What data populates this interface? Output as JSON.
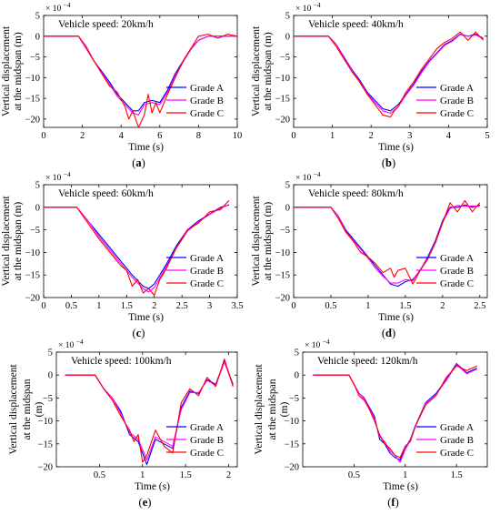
{
  "figure": {
    "legend_labels": [
      "Grade A",
      "Grade B",
      "Grade C"
    ],
    "exponent_label": "× 10",
    "exponent_power": "−4",
    "ylabel_line1": "Vertical displacement",
    "ylabel_line2_panels_a_to_d": "at the midspan  (m)",
    "ylabel_line2_panels_e_f_part1": "at the midspan",
    "ylabel_line2_panels_e_f_part2": "(m)",
    "xlabel": "Time  (s)",
    "series_colors": {
      "Grade A": "#0000ff",
      "Grade B": "#ff00ff",
      "Grade C": "#ff0000"
    }
  },
  "chart_data": [
    {
      "type": "line",
      "panel_label": "(a)",
      "annotation": "Vehicle speed: 20km/h",
      "xlim": [
        0,
        10
      ],
      "ylim": [
        -22,
        5
      ],
      "xticks": [
        0,
        2,
        4,
        6,
        8,
        10
      ],
      "yticks": [
        5,
        0,
        -5,
        -10,
        -15,
        -20
      ],
      "legend": "bottom-right",
      "series": [
        {
          "name": "Grade A",
          "x": [
            0,
            1.8,
            2.2,
            2.6,
            3.0,
            3.4,
            3.8,
            4.2,
            4.6,
            4.9,
            5.2,
            5.6,
            6.0,
            6.4,
            6.8,
            7.2,
            7.6,
            8.0,
            8.5,
            9.0,
            9.5,
            10
          ],
          "y": [
            0,
            0,
            -3,
            -6,
            -8.5,
            -11,
            -14,
            -16,
            -18,
            -18,
            -16,
            -15.5,
            -16,
            -13,
            -9,
            -6,
            -3,
            -1,
            0,
            0,
            0,
            0
          ]
        },
        {
          "name": "Grade B",
          "x": [
            0,
            1.8,
            2.2,
            2.6,
            3.0,
            3.4,
            3.8,
            4.2,
            4.6,
            4.9,
            5.2,
            5.6,
            6.0,
            6.4,
            6.8,
            7.2,
            7.6,
            8.0,
            8.5,
            9.0,
            9.5,
            10
          ],
          "y": [
            0,
            0,
            -3,
            -6,
            -8.8,
            -11.5,
            -14.5,
            -16.5,
            -18.5,
            -19,
            -16.5,
            -16,
            -16.5,
            -13.5,
            -9.5,
            -6.2,
            -3.2,
            -1,
            0,
            0,
            0,
            0
          ]
        },
        {
          "name": "Grade C",
          "x": [
            0,
            1.8,
            2.2,
            2.6,
            3.0,
            3.4,
            3.8,
            4.2,
            4.4,
            4.6,
            4.9,
            5.2,
            5.4,
            5.6,
            5.8,
            6.0,
            6.4,
            6.8,
            7.2,
            7.6,
            8.0,
            8.5,
            9.0,
            9.5,
            10
          ],
          "y": [
            0,
            0,
            -2.5,
            -6,
            -9,
            -12,
            -13.5,
            -17,
            -20,
            -18,
            -22,
            -19,
            -14,
            -18.5,
            -16,
            -18.5,
            -14,
            -10,
            -6,
            -3,
            0,
            0.5,
            -0.5,
            0.5,
            0
          ]
        }
      ]
    },
    {
      "type": "line",
      "panel_label": "(b)",
      "annotation": "Vehicle speed: 40km/h",
      "xlim": [
        0,
        5
      ],
      "ylim": [
        -22,
        5
      ],
      "xticks": [
        0,
        1,
        2,
        3,
        4,
        5
      ],
      "yticks": [
        5,
        0,
        -5,
        -10,
        -15,
        -20
      ],
      "legend": "bottom-right",
      "series": [
        {
          "name": "Grade A",
          "x": [
            0,
            0.9,
            1.1,
            1.3,
            1.5,
            1.7,
            1.9,
            2.1,
            2.3,
            2.5,
            2.7,
            2.9,
            3.1,
            3.3,
            3.5,
            3.7,
            3.9,
            4.1,
            4.3,
            4.5,
            4.7,
            4.9
          ],
          "y": [
            0,
            0,
            -2,
            -5,
            -8,
            -10.5,
            -13.5,
            -15.5,
            -17.5,
            -18,
            -16.5,
            -14,
            -11.5,
            -8.5,
            -6,
            -4,
            -2,
            -1,
            0.5,
            0,
            0.5,
            -0.5
          ]
        },
        {
          "name": "Grade B",
          "x": [
            0,
            0.9,
            1.1,
            1.3,
            1.5,
            1.7,
            1.9,
            2.1,
            2.3,
            2.5,
            2.7,
            2.9,
            3.1,
            3.3,
            3.5,
            3.7,
            3.9,
            4.1,
            4.3,
            4.5,
            4.7,
            4.9
          ],
          "y": [
            0,
            0,
            -2,
            -5.2,
            -8.2,
            -10.8,
            -13.8,
            -16,
            -18,
            -18.6,
            -17,
            -14.2,
            -11.8,
            -8.8,
            -6.2,
            -4.2,
            -2.2,
            -1.2,
            0.4,
            0,
            0.3,
            -0.6
          ]
        },
        {
          "name": "Grade C",
          "x": [
            0,
            0.9,
            1.1,
            1.3,
            1.5,
            1.7,
            1.9,
            2.1,
            2.3,
            2.5,
            2.6,
            2.7,
            2.9,
            3.1,
            3.3,
            3.5,
            3.7,
            3.9,
            4.1,
            4.3,
            4.5,
            4.7,
            4.9
          ],
          "y": [
            0,
            0,
            -2.5,
            -5.5,
            -8.5,
            -11,
            -14,
            -16.5,
            -19,
            -19.5,
            -18,
            -17,
            -13.5,
            -11,
            -8,
            -5.5,
            -3,
            -1.5,
            -0.5,
            1,
            -1,
            1,
            -1
          ]
        }
      ]
    },
    {
      "type": "line",
      "panel_label": "(c)",
      "annotation": "Vehicle speed: 60km/h",
      "xlim": [
        0,
        3.5
      ],
      "ylim": [
        -20,
        5
      ],
      "xticks": [
        0,
        0.5,
        1,
        1.5,
        2,
        2.5,
        3,
        3.5
      ],
      "yticks": [
        5,
        0,
        -5,
        -10,
        -15,
        -20
      ],
      "legend": "bottom-right",
      "series": [
        {
          "name": "Grade A",
          "x": [
            0,
            0.6,
            0.8,
            1.0,
            1.2,
            1.4,
            1.6,
            1.8,
            1.9,
            2.0,
            2.2,
            2.4,
            2.6,
            2.8,
            3.0,
            3.2,
            3.35
          ],
          "y": [
            0,
            0,
            -3,
            -6,
            -9,
            -12,
            -15,
            -17.5,
            -18,
            -17,
            -13,
            -8.5,
            -5,
            -3,
            -1.5,
            0,
            0.5
          ]
        },
        {
          "name": "Grade B",
          "x": [
            0,
            0.6,
            0.8,
            1.0,
            1.2,
            1.4,
            1.6,
            1.8,
            1.9,
            2.0,
            2.2,
            2.4,
            2.6,
            2.8,
            3.0,
            3.2,
            3.35
          ],
          "y": [
            0,
            0,
            -3,
            -6.5,
            -9.5,
            -12.5,
            -15.5,
            -18,
            -18.8,
            -17.8,
            -13.5,
            -9,
            -5.3,
            -3.2,
            -1.6,
            -0.2,
            0.6
          ]
        },
        {
          "name": "Grade C",
          "x": [
            0,
            0.6,
            0.8,
            1.0,
            1.2,
            1.4,
            1.5,
            1.6,
            1.7,
            1.8,
            1.9,
            2.0,
            2.1,
            2.2,
            2.4,
            2.6,
            2.8,
            3.0,
            3.2,
            3.35
          ],
          "y": [
            0,
            0,
            -3.5,
            -7,
            -10,
            -13,
            -14,
            -17.5,
            -16,
            -19,
            -18,
            -19.5,
            -16,
            -14,
            -9,
            -5,
            -3.5,
            -1,
            -0.5,
            1.5
          ]
        }
      ]
    },
    {
      "type": "line",
      "panel_label": "(d)",
      "annotation": "Vehicle speed: 80km/h",
      "xlim": [
        0,
        2.6
      ],
      "ylim": [
        -20,
        5
      ],
      "xticks": [
        0,
        0.5,
        1,
        1.5,
        2,
        2.5
      ],
      "yticks": [
        5,
        0,
        -5,
        -10,
        -15,
        -20
      ],
      "legend": "bottom-right",
      "series": [
        {
          "name": "Grade A",
          "x": [
            0,
            0.5,
            0.6,
            0.7,
            0.8,
            0.9,
            1.0,
            1.1,
            1.2,
            1.3,
            1.4,
            1.5,
            1.6,
            1.7,
            1.8,
            1.9,
            2.0,
            2.1,
            2.2,
            2.3,
            2.4,
            2.5
          ],
          "y": [
            0,
            0,
            -2,
            -5,
            -7,
            -9,
            -11,
            -13,
            -15,
            -17,
            -17.5,
            -16.5,
            -16,
            -14,
            -11,
            -7.5,
            -3,
            0,
            0,
            0.5,
            0,
            0.5
          ]
        },
        {
          "name": "Grade B",
          "x": [
            0,
            0.5,
            0.6,
            0.7,
            0.8,
            0.9,
            1.0,
            1.1,
            1.2,
            1.3,
            1.4,
            1.5,
            1.6,
            1.7,
            1.8,
            1.9,
            2.0,
            2.1,
            2.2,
            2.3,
            2.4,
            2.5
          ],
          "y": [
            0,
            0,
            -2,
            -5.3,
            -7.3,
            -9.3,
            -11.3,
            -13.5,
            -15.3,
            -16.8,
            -16.8,
            -16,
            -16.3,
            -13.8,
            -11.3,
            -7.8,
            -3.3,
            -0.3,
            0.4,
            0.2,
            0.3,
            0.2
          ]
        },
        {
          "name": "Grade C",
          "x": [
            0,
            0.5,
            0.6,
            0.7,
            0.8,
            0.9,
            1.0,
            1.1,
            1.2,
            1.3,
            1.35,
            1.4,
            1.5,
            1.6,
            1.7,
            1.8,
            1.9,
            2.0,
            2.1,
            2.2,
            2.3,
            2.4,
            2.5
          ],
          "y": [
            0,
            0,
            -2.5,
            -5.5,
            -7.5,
            -10,
            -11,
            -12.5,
            -14.5,
            -13.5,
            -15.5,
            -14,
            -13.5,
            -17,
            -14,
            -11.5,
            -8,
            -3.5,
            1,
            -1,
            1.5,
            -1,
            1
          ]
        }
      ]
    },
    {
      "type": "line",
      "panel_label": "(e)",
      "annotation": "Vehicle speed: 100km/h",
      "xlim": [
        0,
        2.1
      ],
      "ylim": [
        -20,
        5
      ],
      "xticks": [
        0.5,
        1,
        1.5,
        2
      ],
      "yticks": [
        5,
        0,
        -5,
        -10,
        -15,
        -20
      ],
      "legend": "bottom-right",
      "series": [
        {
          "name": "Grade A",
          "x": [
            0.1,
            0.45,
            0.55,
            0.65,
            0.75,
            0.85,
            0.95,
            1.05,
            1.15,
            1.25,
            1.35,
            1.45,
            1.55,
            1.65,
            1.75,
            1.85,
            1.95,
            2.05
          ],
          "y": [
            0,
            0,
            -3,
            -5,
            -8,
            -13,
            -14.5,
            -19.5,
            -14,
            -15,
            -16,
            -7,
            -3.5,
            -4,
            -1,
            -2,
            3,
            -2
          ]
        },
        {
          "name": "Grade B",
          "x": [
            0.1,
            0.45,
            0.55,
            0.65,
            0.75,
            0.85,
            0.95,
            1.05,
            1.15,
            1.25,
            1.35,
            1.45,
            1.55,
            1.65,
            1.75,
            1.85,
            1.95,
            2.05
          ],
          "y": [
            0,
            0,
            -3,
            -5,
            -8.5,
            -12.5,
            -14,
            -18.5,
            -13.5,
            -14.5,
            -15.5,
            -7.5,
            -3.8,
            -3.8,
            -1.2,
            -2.2,
            2.8,
            -2.2
          ]
        },
        {
          "name": "Grade C",
          "x": [
            0.1,
            0.45,
            0.55,
            0.65,
            0.75,
            0.85,
            0.9,
            0.95,
            1.0,
            1.05,
            1.15,
            1.25,
            1.35,
            1.45,
            1.55,
            1.65,
            1.75,
            1.85,
            1.95,
            2.05
          ],
          "y": [
            0,
            0,
            -3,
            -5.5,
            -9,
            -12,
            -14.5,
            -13,
            -19,
            -17.5,
            -12,
            -15.5,
            -17,
            -6,
            -3,
            -4.5,
            -0.5,
            -2.5,
            3.5,
            -2.5
          ]
        }
      ]
    },
    {
      "type": "line",
      "panel_label": "(f)",
      "annotation": "Vehicle speed: 120km/h",
      "xlim": [
        0,
        1.8
      ],
      "ylim": [
        -20,
        5
      ],
      "xticks": [
        0.5,
        1,
        1.5
      ],
      "yticks": [
        5,
        0,
        -5,
        -10,
        -15,
        -20
      ],
      "legend": "bottom-right",
      "series": [
        {
          "name": "Grade A",
          "x": [
            0.1,
            0.45,
            0.5,
            0.55,
            0.6,
            0.65,
            0.7,
            0.75,
            0.8,
            0.85,
            0.9,
            0.95,
            1.0,
            1.05,
            1.1,
            1.2,
            1.3,
            1.4,
            1.5,
            1.6,
            1.7
          ],
          "y": [
            0,
            0,
            -2,
            -4,
            -5,
            -7,
            -9,
            -14,
            -15,
            -17,
            -18,
            -18.5,
            -16,
            -14,
            -11,
            -6,
            -4,
            -1,
            2.5,
            0.5,
            1.5
          ]
        },
        {
          "name": "Grade B",
          "x": [
            0.1,
            0.45,
            0.5,
            0.55,
            0.6,
            0.65,
            0.7,
            0.75,
            0.8,
            0.85,
            0.9,
            0.95,
            1.0,
            1.05,
            1.1,
            1.2,
            1.3,
            1.4,
            1.5,
            1.6,
            1.7
          ],
          "y": [
            0,
            0,
            -2,
            -4,
            -5.2,
            -7.2,
            -9.5,
            -13.5,
            -14.5,
            -16.5,
            -17.5,
            -19,
            -16.2,
            -14.2,
            -11.2,
            -6.2,
            -4.2,
            -1.2,
            2.3,
            0.3,
            1.3
          ]
        },
        {
          "name": "Grade C",
          "x": [
            0.1,
            0.45,
            0.5,
            0.55,
            0.6,
            0.65,
            0.7,
            0.75,
            0.8,
            0.85,
            0.9,
            0.95,
            1.0,
            1.05,
            1.1,
            1.2,
            1.3,
            1.4,
            1.5,
            1.6,
            1.7
          ],
          "y": [
            0,
            0,
            -2,
            -4.5,
            -5.5,
            -7.5,
            -10,
            -13,
            -15,
            -16,
            -17.5,
            -18,
            -15.5,
            -14.5,
            -11,
            -6.5,
            -4.5,
            -0.5,
            2,
            1,
            2
          ]
        }
      ]
    }
  ]
}
